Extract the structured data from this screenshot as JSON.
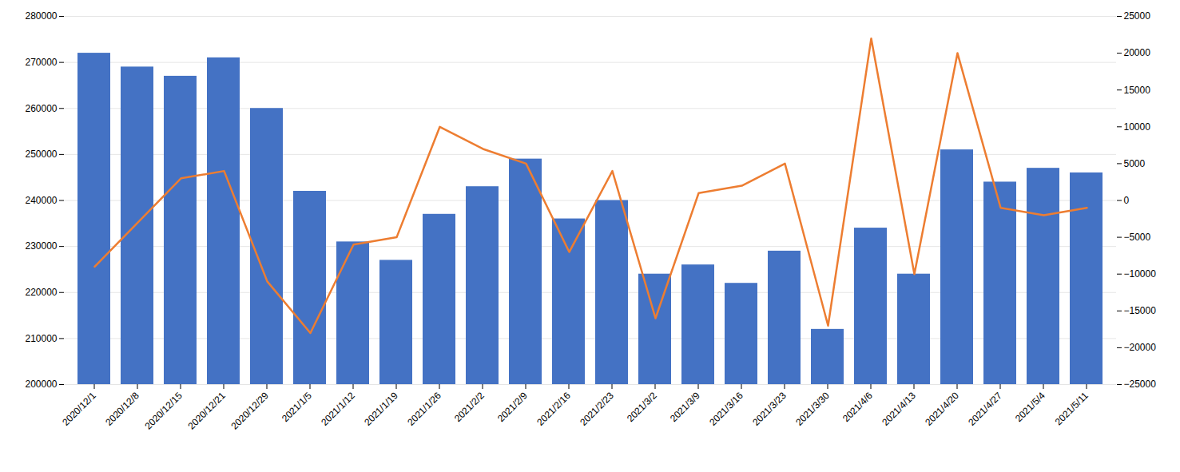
{
  "chart_data": {
    "type": "bar",
    "categories": [
      "2020/12/1",
      "2020/12/8",
      "2020/12/15",
      "2020/12/21",
      "2020/12/29",
      "2021/1/5",
      "2021/1/12",
      "2021/1/19",
      "2021/1/26",
      "2021/2/2",
      "2021/2/9",
      "2021/2/16",
      "2021/2/23",
      "2021/3/2",
      "2021/3/9",
      "2021/3/16",
      "2021/3/23",
      "2021/3/30",
      "2021/4/6",
      "2021/4/13",
      "2021/4/20",
      "2021/4/27",
      "2021/5/4",
      "2021/5/11"
    ],
    "series": [
      {
        "type": "bar",
        "color": "#4472C4",
        "values": [
          272000,
          269000,
          267000,
          271000,
          260000,
          242000,
          231000,
          227000,
          237000,
          243000,
          249000,
          236000,
          240000,
          224000,
          226000,
          222000,
          229000,
          212000,
          234000,
          224000,
          251000,
          244000,
          247000,
          246000
        ]
      },
      {
        "type": "line",
        "color": "#ED7D31",
        "axis": "y2",
        "values": [
          -9000,
          -3000,
          3000,
          4000,
          -11000,
          -18000,
          -6000,
          -5000,
          10000,
          7000,
          5000,
          -7000,
          4000,
          -16000,
          1000,
          2000,
          5000,
          -17000,
          22000,
          -10000,
          20000,
          -1000,
          -2000,
          -1000
        ]
      }
    ],
    "ylim": [
      200000,
      280000
    ],
    "yticks": [
      200000,
      210000,
      220000,
      230000,
      240000,
      250000,
      260000,
      270000,
      280000
    ],
    "y2lim": [
      -25000,
      25000
    ],
    "y2ticks": [
      -25000,
      -20000,
      -15000,
      -10000,
      -5000,
      0,
      5000,
      10000,
      15000,
      20000,
      25000
    ],
    "grid": true
  }
}
